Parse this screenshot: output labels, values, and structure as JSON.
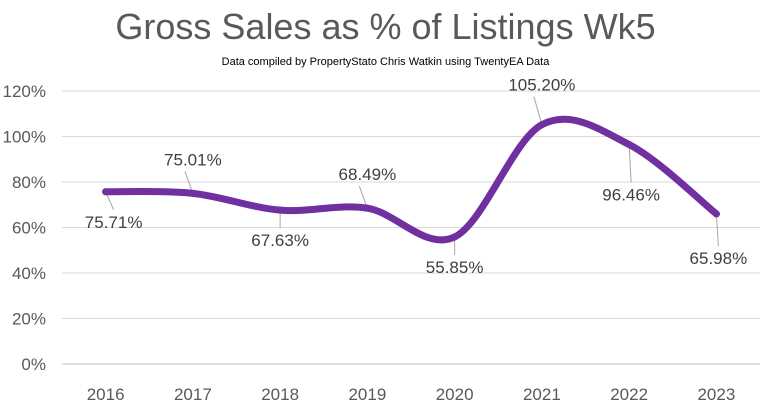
{
  "chart_data": {
    "type": "line",
    "title": "Gross Sales as % of Listings Wk5",
    "subtitle": "Data compiled by PropertyStato Chris Watkin using TwentyEA Data",
    "categories": [
      "2016",
      "2017",
      "2018",
      "2019",
      "2020",
      "2021",
      "2022",
      "2023"
    ],
    "series": [
      {
        "values": [
          75.71,
          75.01,
          67.63,
          68.49,
          55.85,
          105.2,
          96.46,
          65.98
        ],
        "labels": [
          "75.71%",
          "75.01%",
          "67.63%",
          "68.49%",
          "55.85%",
          "105.20%",
          "96.46%",
          "65.98%"
        ],
        "color": "#7030a0"
      }
    ],
    "ylim": [
      0,
      120
    ],
    "yticks": [
      0,
      20,
      40,
      60,
      80,
      100,
      120
    ],
    "ytick_labels": [
      "0%",
      "20%",
      "40%",
      "60%",
      "80%",
      "100%",
      "120%"
    ],
    "smooth": true,
    "grid": true,
    "legend": "none",
    "xlabel": "",
    "ylabel": ""
  }
}
